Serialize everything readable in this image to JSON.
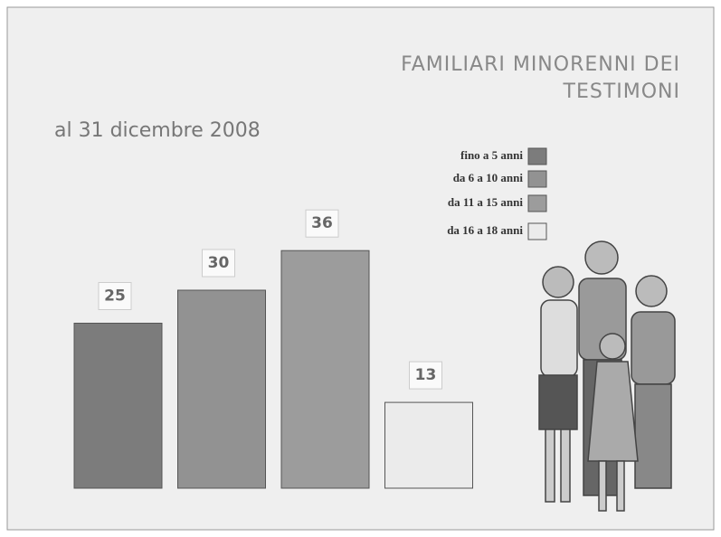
{
  "chart_data": {
    "type": "bar",
    "title": "FAMILIARI  MINORENNI DEI",
    "subtitle_title": "TESTIMONI",
    "subtitle": "al 31 dicembre 2008",
    "categories": [
      "fino a 5 anni",
      "da 6 a 10 anni",
      "da 11 a 15 anni",
      "da 16 a 18 anni"
    ],
    "values": [
      25,
      30,
      36,
      13
    ],
    "colors": [
      "#7c7c7c",
      "#929292",
      "#9c9c9c",
      "#ebebeb"
    ]
  }
}
